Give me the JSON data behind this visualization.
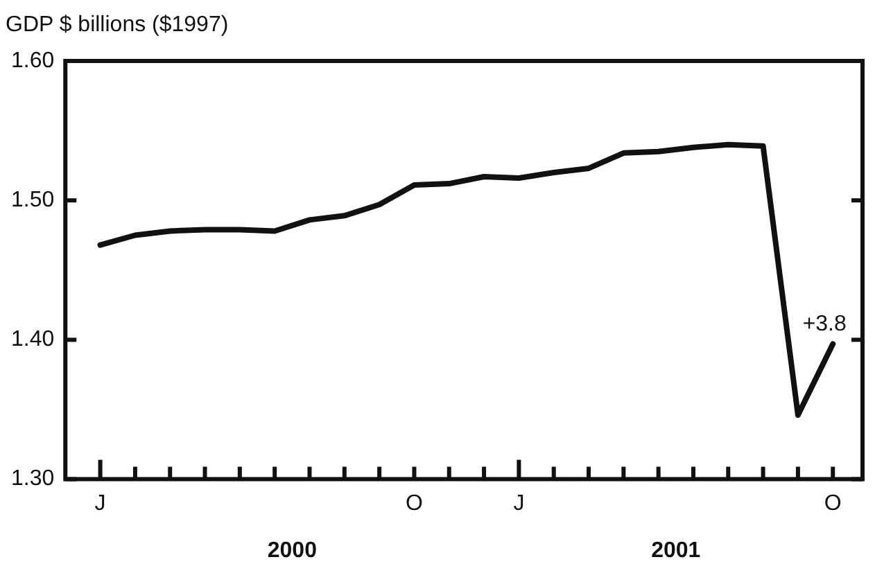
{
  "chart_data": {
    "type": "line",
    "ylabel": "GDP $ billions ($1997)",
    "categories": [
      "J",
      null,
      null,
      null,
      null,
      null,
      null,
      null,
      null,
      "O",
      null,
      null,
      "J",
      null,
      null,
      null,
      null,
      null,
      null,
      null,
      null,
      "O"
    ],
    "series": [
      {
        "color": "#111111",
        "values": [
          1.468,
          1.475,
          1.478,
          1.479,
          1.479,
          1.478,
          1.486,
          1.489,
          1.497,
          1.511,
          1.512,
          1.517,
          1.516,
          1.52,
          1.523,
          1.534,
          1.535,
          1.538,
          1.54,
          1.539,
          1.346,
          1.397
        ]
      }
    ],
    "ylim": [
      1.3,
      1.6
    ],
    "yticks": [
      {
        "value": 1.3,
        "label": "1.30"
      },
      {
        "value": 1.4,
        "label": "1.40"
      },
      {
        "value": 1.5,
        "label": "1.50"
      },
      {
        "value": 1.6,
        "label": "1.60"
      }
    ],
    "annotations": [
      {
        "text": "+3.8",
        "y": 1.397
      },
      "2000",
      "2001"
    ],
    "grid": false,
    "legend": false,
    "marker": "none",
    "line_style": "solid"
  }
}
